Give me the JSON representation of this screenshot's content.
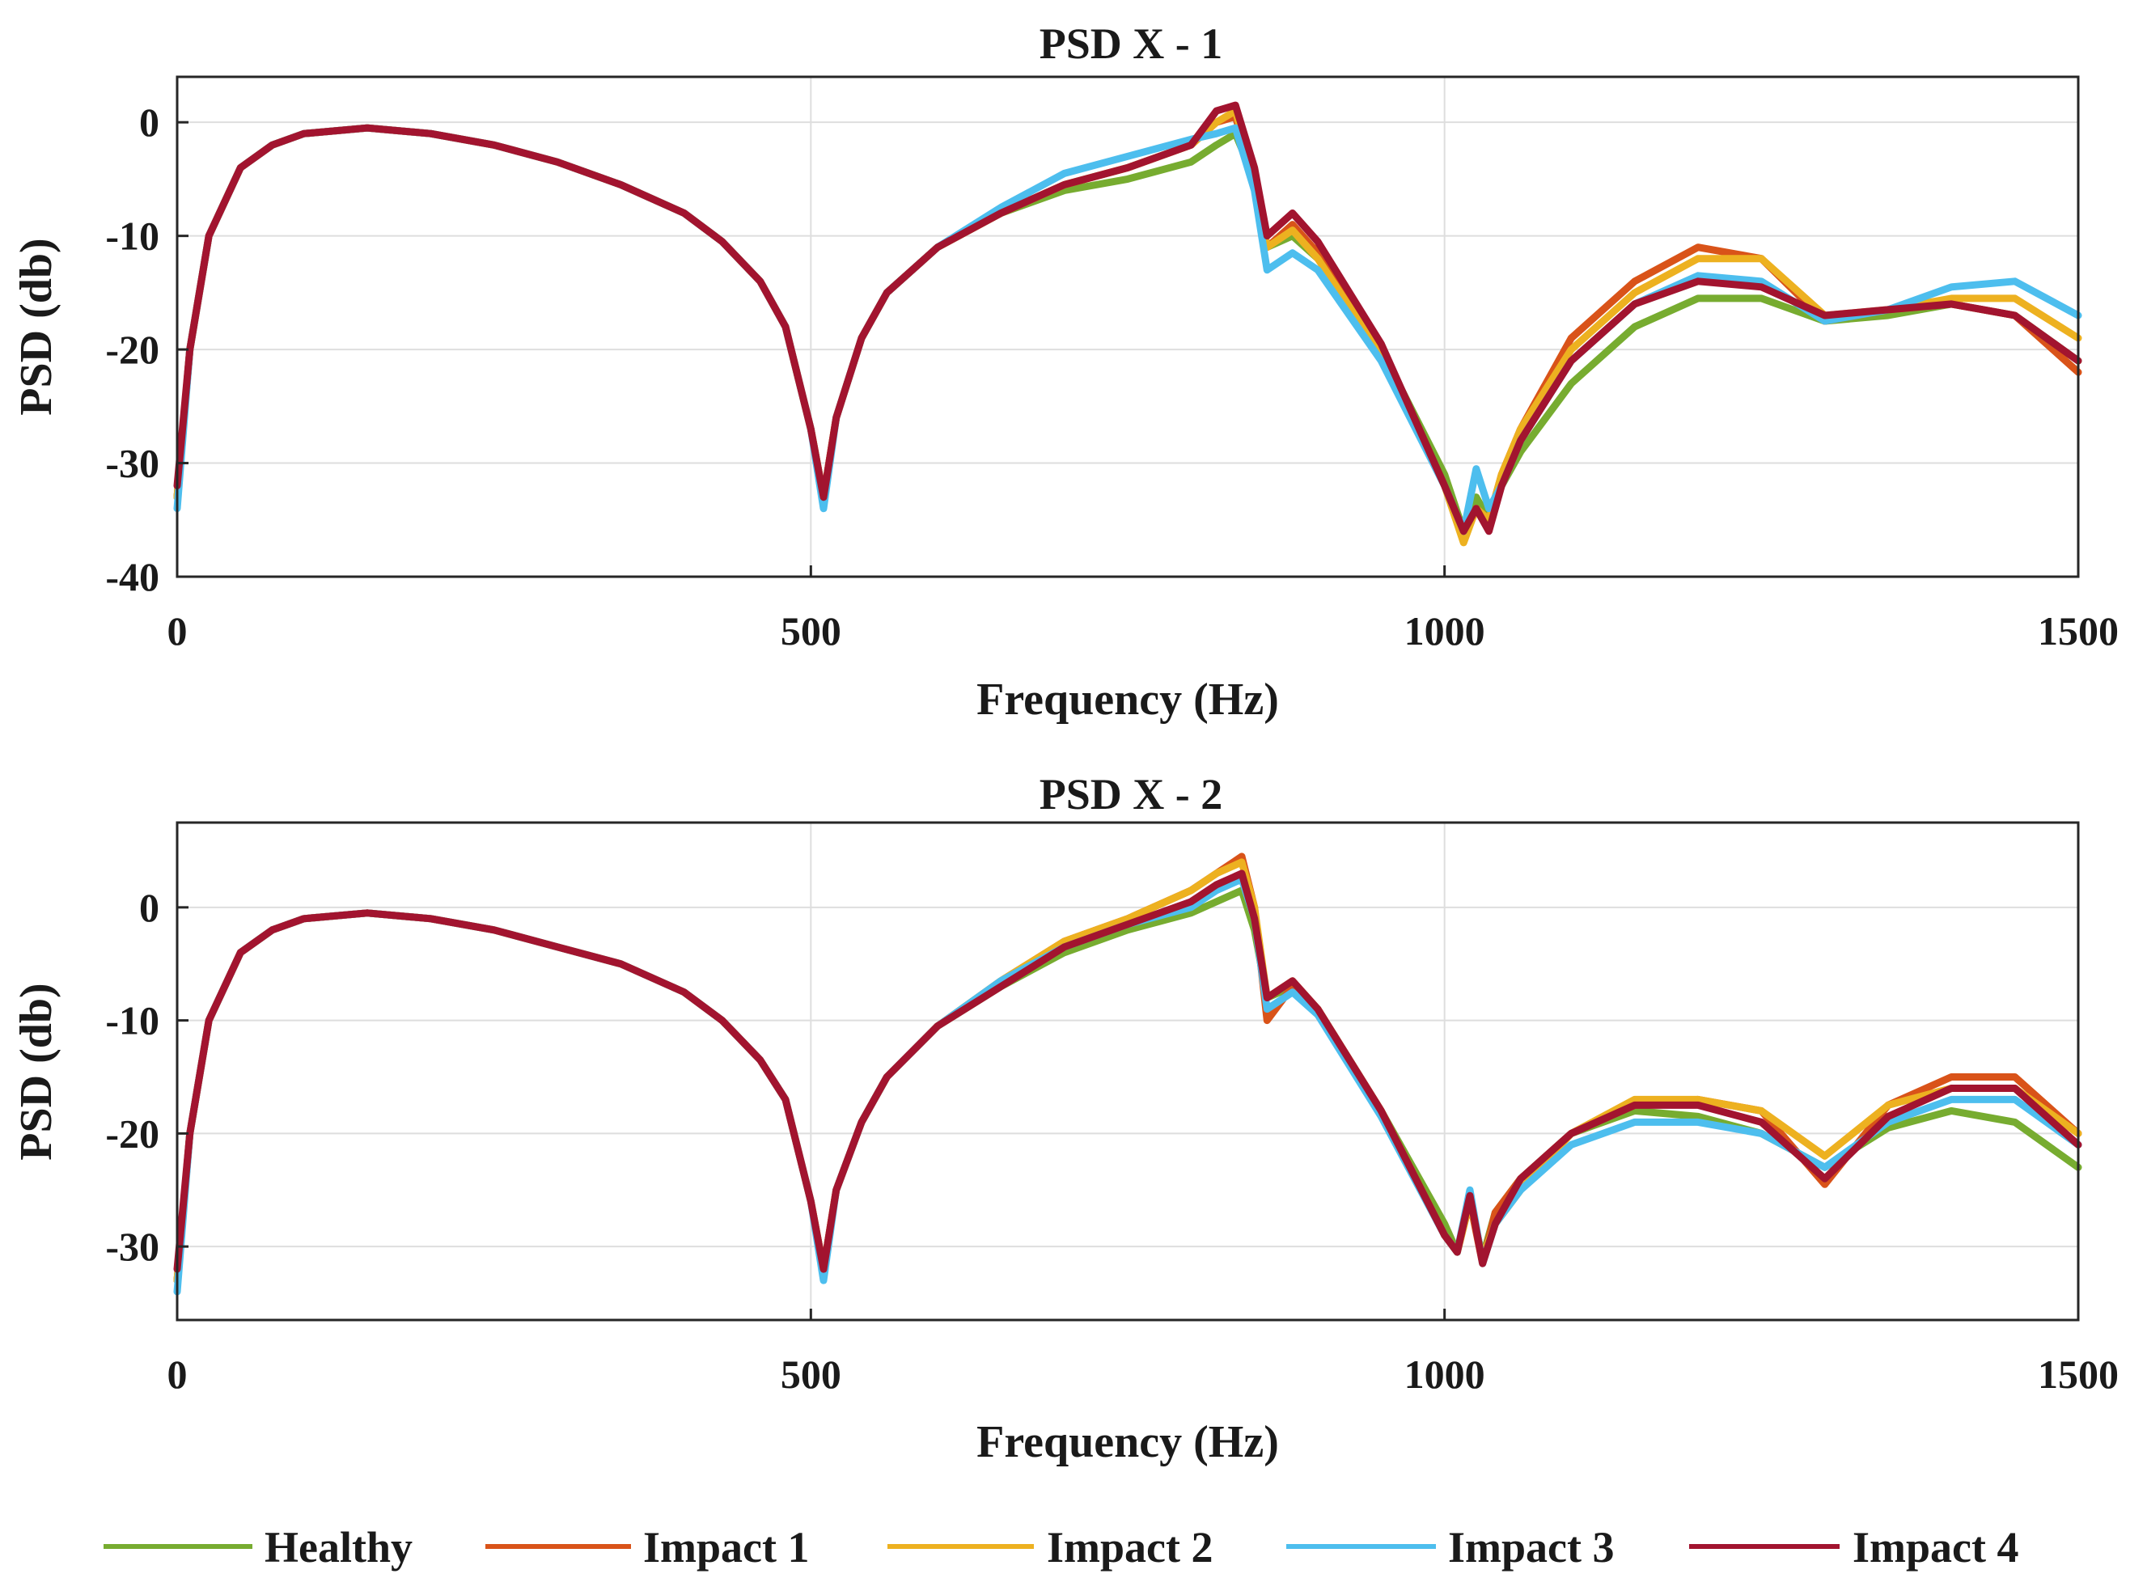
{
  "legend": [
    {
      "name": "Healthy",
      "color": "#77ac30"
    },
    {
      "name": "Impact 1",
      "color": "#d95319"
    },
    {
      "name": "Impact 2",
      "color": "#edb120"
    },
    {
      "name": "Impact 3",
      "color": "#4dbeee"
    },
    {
      "name": "Impact 4",
      "color": "#a2142f"
    }
  ],
  "chart_data": [
    {
      "type": "line",
      "title": "PSD X - 1",
      "xlabel": "Frequency (Hz)",
      "ylabel": "PSD (db)",
      "xlim": [
        0,
        1500
      ],
      "ylim": [
        -40,
        4
      ],
      "xticks": [
        0,
        500,
        1000,
        1500
      ],
      "yticks": [
        0,
        -10,
        -20,
        -30,
        -40
      ],
      "grid": true,
      "x": [
        0,
        10,
        25,
        50,
        75,
        100,
        150,
        200,
        250,
        300,
        350,
        400,
        430,
        460,
        480,
        500,
        510,
        520,
        540,
        560,
        600,
        650,
        700,
        750,
        800,
        820,
        835,
        850,
        860,
        880,
        900,
        950,
        1000,
        1015,
        1025,
        1035,
        1045,
        1060,
        1100,
        1150,
        1200,
        1250,
        1300,
        1350,
        1400,
        1450,
        1500
      ],
      "series": [
        {
          "name": "Healthy",
          "values": [
            -33,
            -20,
            -10,
            -4,
            -2,
            -1,
            -0.5,
            -1,
            -2,
            -3.5,
            -5.5,
            -8,
            -10.5,
            -14,
            -18,
            -27,
            -33,
            -26,
            -19,
            -15,
            -11,
            -8,
            -6,
            -5,
            -3.5,
            -2,
            -1,
            -5,
            -11,
            -10,
            -12,
            -20,
            -31,
            -36,
            -33,
            -35,
            -32,
            -29,
            -23,
            -18,
            -15.5,
            -15.5,
            -17.5,
            -17,
            -16,
            -17,
            -21
          ]
        },
        {
          "name": "Impact 1",
          "values": [
            -33,
            -20,
            -10,
            -4,
            -2,
            -1,
            -0.5,
            -1,
            -2,
            -3.5,
            -5.5,
            -8,
            -10.5,
            -14,
            -18,
            -27,
            -33,
            -26,
            -19,
            -15,
            -11,
            -8,
            -5.5,
            -4,
            -2,
            0,
            0.5,
            -5,
            -11,
            -9,
            -11.5,
            -20,
            -32,
            -36,
            -34,
            -35,
            -31,
            -27,
            -19,
            -14,
            -11,
            -12,
            -17.5,
            -16.5,
            -16,
            -17,
            -22
          ]
        },
        {
          "name": "Impact 2",
          "values": [
            -33,
            -20,
            -10,
            -4,
            -2,
            -1,
            -0.5,
            -1,
            -2,
            -3.5,
            -5.5,
            -8,
            -10.5,
            -14,
            -18,
            -27,
            -33,
            -26,
            -19,
            -15,
            -11,
            -8,
            -5.5,
            -4,
            -2,
            0,
            1,
            -5,
            -11,
            -9.5,
            -12,
            -20.5,
            -32,
            -37,
            -34,
            -35,
            -31,
            -27,
            -20,
            -15,
            -12,
            -12,
            -17,
            -16.5,
            -15.5,
            -15.5,
            -19
          ]
        },
        {
          "name": "Impact 3",
          "values": [
            -34,
            -20,
            -10,
            -4,
            -2,
            -1,
            -0.5,
            -1,
            -2,
            -3.5,
            -5.5,
            -8,
            -10.5,
            -14,
            -18,
            -27,
            -34,
            -26,
            -19,
            -15,
            -11,
            -7.5,
            -4.5,
            -3,
            -1.5,
            -1,
            -0.5,
            -6,
            -13,
            -11.5,
            -13,
            -21,
            -32,
            -36,
            -30.5,
            -34,
            -32,
            -28,
            -21,
            -16,
            -13.5,
            -14,
            -17.5,
            -16.5,
            -14.5,
            -14,
            -17
          ]
        },
        {
          "name": "Impact 4",
          "values": [
            -32,
            -20,
            -10,
            -4,
            -2,
            -1,
            -0.5,
            -1,
            -2,
            -3.5,
            -5.5,
            -8,
            -10.5,
            -14,
            -18,
            -27,
            -33,
            -26,
            -19,
            -15,
            -11,
            -8,
            -5.5,
            -4,
            -2,
            1,
            1.5,
            -4,
            -10,
            -8,
            -10.5,
            -19.5,
            -32,
            -36,
            -34,
            -36,
            -32,
            -28,
            -21,
            -16,
            -14,
            -14.5,
            -17,
            -16.5,
            -16,
            -17,
            -21
          ]
        }
      ]
    },
    {
      "type": "line",
      "title": "PSD X - 2",
      "xlabel": "Frequency (Hz)",
      "ylabel": "PSD (db)",
      "xlim": [
        0,
        1500
      ],
      "ylim": [
        -36.5,
        7.5
      ],
      "xticks": [
        0,
        500,
        1000,
        1500
      ],
      "yticks": [
        0,
        -10,
        -20,
        -30
      ],
      "grid": true,
      "x": [
        0,
        10,
        25,
        50,
        75,
        100,
        150,
        200,
        250,
        300,
        350,
        400,
        430,
        460,
        480,
        500,
        510,
        520,
        540,
        560,
        600,
        650,
        700,
        750,
        800,
        820,
        840,
        850,
        860,
        880,
        900,
        950,
        1000,
        1010,
        1020,
        1030,
        1040,
        1060,
        1100,
        1150,
        1200,
        1250,
        1300,
        1350,
        1400,
        1450,
        1500
      ],
      "series": [
        {
          "name": "Healthy",
          "values": [
            -33,
            -20,
            -10,
            -4,
            -2,
            -1,
            -0.5,
            -1,
            -2,
            -3.5,
            -5,
            -7.5,
            -10,
            -13.5,
            -17,
            -26,
            -32,
            -25,
            -19,
            -15,
            -10.5,
            -7,
            -4,
            -2,
            -0.5,
            0.5,
            1.5,
            -2,
            -8,
            -7,
            -9,
            -18,
            -28,
            -30.5,
            -26,
            -31,
            -27,
            -24,
            -20,
            -18,
            -18.5,
            -20,
            -23,
            -19.5,
            -18,
            -19,
            -23
          ]
        },
        {
          "name": "Impact 1",
          "values": [
            -33,
            -20,
            -10,
            -4,
            -2,
            -1,
            -0.5,
            -1,
            -2,
            -3.5,
            -5,
            -7.5,
            -10,
            -13.5,
            -17,
            -26,
            -32,
            -25,
            -19,
            -15,
            -10.5,
            -6.5,
            -3,
            -1,
            1.5,
            3,
            4.5,
            0,
            -10,
            -7,
            -9,
            -18,
            -29,
            -30.5,
            -26,
            -31.5,
            -27,
            -24,
            -20,
            -17.5,
            -17,
            -18,
            -24.5,
            -17.5,
            -15,
            -15,
            -20
          ]
        },
        {
          "name": "Impact 2",
          "values": [
            -33,
            -20,
            -10,
            -4,
            -2,
            -1,
            -0.5,
            -1,
            -2,
            -3.5,
            -5,
            -7.5,
            -10,
            -13.5,
            -17,
            -26,
            -32,
            -25,
            -19,
            -15,
            -10.5,
            -6.5,
            -3,
            -1,
            1.5,
            3,
            4,
            0,
            -8,
            -6.5,
            -9,
            -18,
            -29,
            -30.5,
            -26,
            -31,
            -28,
            -25,
            -20,
            -17,
            -17,
            -18,
            -22,
            -17.5,
            -16,
            -16,
            -20
          ]
        },
        {
          "name": "Impact 3",
          "values": [
            -34,
            -20,
            -10,
            -4,
            -2,
            -1,
            -0.5,
            -1,
            -2,
            -3.5,
            -5,
            -7.5,
            -10,
            -13.5,
            -17,
            -26,
            -33,
            -25,
            -19,
            -15,
            -10.5,
            -6.5,
            -3.5,
            -1.5,
            0,
            1.5,
            2.5,
            -1,
            -9,
            -7.5,
            -9.5,
            -18.5,
            -29,
            -30.5,
            -25,
            -31.5,
            -28,
            -25,
            -21,
            -19,
            -19,
            -20,
            -23,
            -19,
            -17,
            -17,
            -21
          ]
        },
        {
          "name": "Impact 4",
          "values": [
            -32,
            -20,
            -10,
            -4,
            -2,
            -1,
            -0.5,
            -1,
            -2,
            -3.5,
            -5,
            -7.5,
            -10,
            -13.5,
            -17,
            -26,
            -32,
            -25,
            -19,
            -15,
            -10.5,
            -7,
            -3.5,
            -1.5,
            0.5,
            2,
            3,
            -1,
            -8,
            -6.5,
            -9,
            -18,
            -29,
            -30.5,
            -25.5,
            -31.5,
            -28,
            -24,
            -20,
            -17.5,
            -17.5,
            -19,
            -24,
            -18.5,
            -16,
            -16,
            -21
          ]
        }
      ]
    }
  ]
}
